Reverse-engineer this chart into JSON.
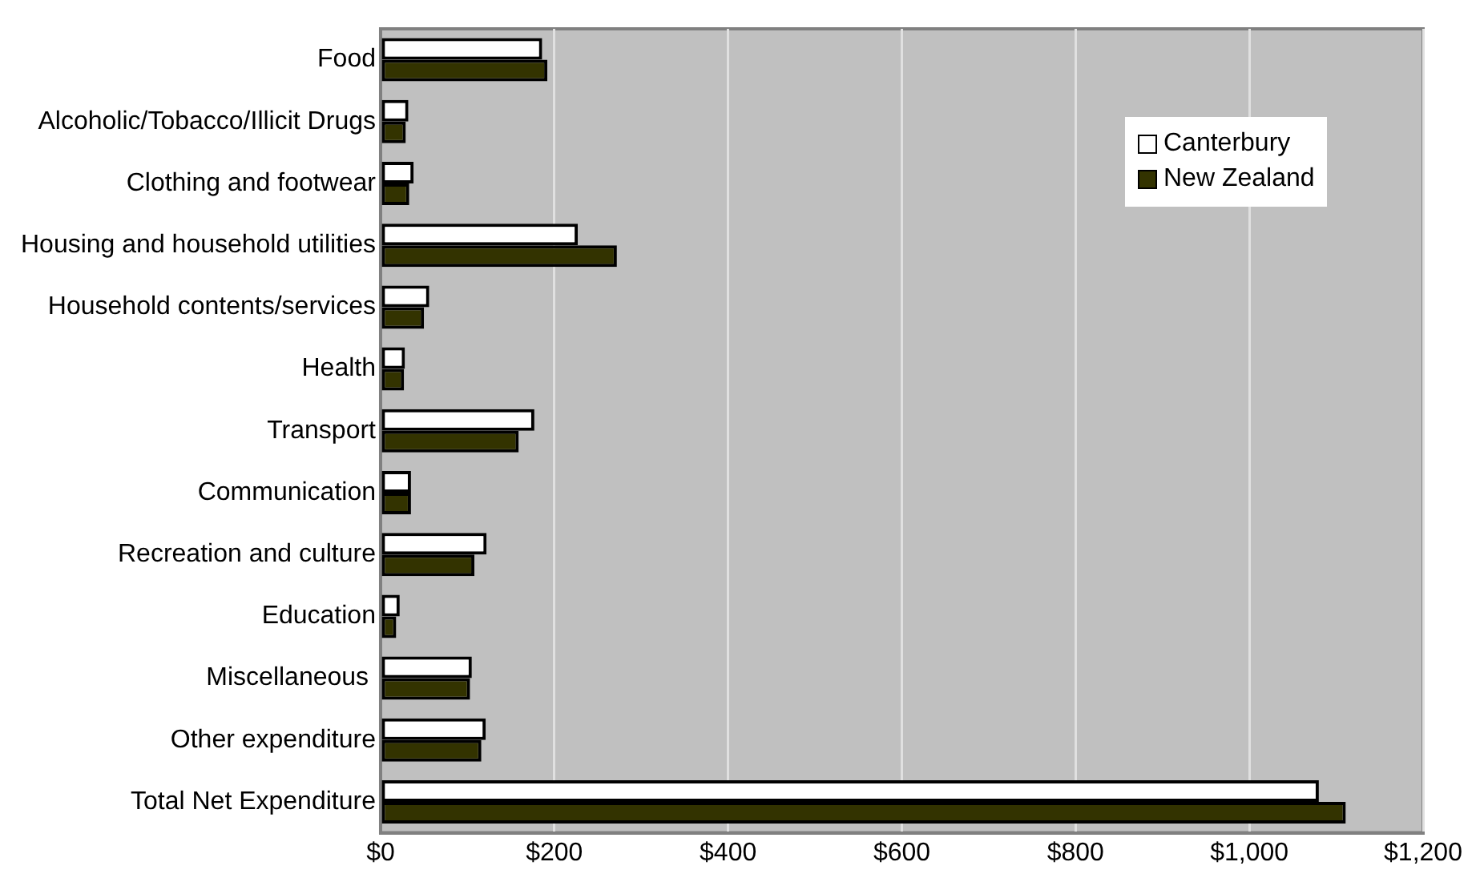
{
  "chart_data": {
    "type": "bar",
    "orientation": "horizontal",
    "categories": [
      "Food",
      "Alcoholic/Tobacco/Illicit Drugs",
      "Clothing and footwear",
      "Housing and household utilities",
      "Household contents/services",
      "Health",
      "Transport",
      "Communication",
      "Recreation and culture",
      "Education",
      "Miscellaneous ",
      "Other expenditure",
      "Total Net Expenditure"
    ],
    "series": [
      {
        "name": "Canterbury",
        "color": "#ffffff",
        "values": [
          186,
          32,
          38,
          227,
          56,
          28,
          177,
          35,
          122,
          22,
          105,
          121,
          1080
        ]
      },
      {
        "name": "New Zealand",
        "color": "#333300",
        "values": [
          192,
          29,
          33,
          272,
          50,
          27,
          159,
          35,
          108,
          18,
          103,
          116,
          1111
        ]
      }
    ],
    "xlim": [
      0,
      1200
    ],
    "xticks": [
      {
        "value": 0,
        "label": "$0"
      },
      {
        "value": 200,
        "label": "$200"
      },
      {
        "value": 400,
        "label": "$400"
      },
      {
        "value": 600,
        "label": "$600"
      },
      {
        "value": 800,
        "label": "$800"
      },
      {
        "value": 1000,
        "label": "$1,000"
      },
      {
        "value": 1200,
        "label": "$1,200"
      }
    ],
    "grid": "x",
    "legend": "top right"
  }
}
